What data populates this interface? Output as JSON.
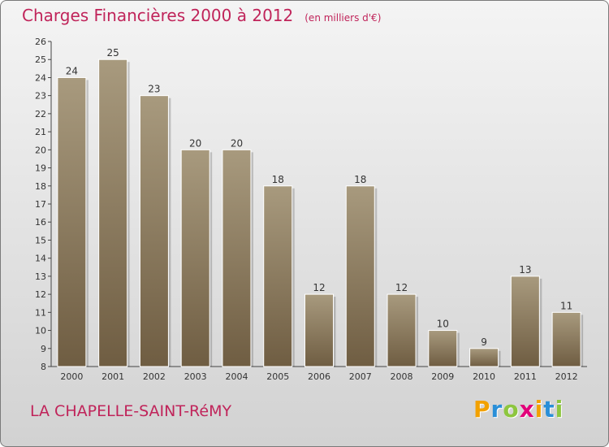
{
  "header": {
    "title": "Charges Financières 2000 à 2012",
    "unit": "(en milliers d'€)"
  },
  "footer": {
    "commune": "LA CHAPELLE-SAINT-RéMY",
    "brand": "Proxiti",
    "brand_letters": [
      "P",
      "r",
      "o",
      "x",
      "i",
      "t",
      "i"
    ],
    "brand_colors": [
      "#f2a100",
      "#2a8fd8",
      "#8dc63f",
      "#e2007a",
      "#f2a100",
      "#2a8fd8",
      "#8dc63f"
    ]
  },
  "colors": {
    "accent": "#c0245a",
    "bar_top": "#a89a7e",
    "bar_bottom": "#6f5d42"
  },
  "chart_data": {
    "type": "bar",
    "categories": [
      "2000",
      "2001",
      "2002",
      "2003",
      "2004",
      "2005",
      "2006",
      "2007",
      "2008",
      "2009",
      "2010",
      "2011",
      "2012"
    ],
    "values": [
      24,
      25,
      23,
      20,
      20,
      18,
      12,
      18,
      12,
      10,
      9,
      13,
      11
    ],
    "title": "Charges Financières 2000 à 2012",
    "subtitle": "(en milliers d'€)",
    "xlabel": "",
    "ylabel": "",
    "ylim": [
      8,
      26
    ],
    "yticks": [
      8,
      9,
      10,
      11,
      12,
      13,
      14,
      15,
      16,
      17,
      18,
      19,
      20,
      21,
      22,
      23,
      24,
      25,
      26
    ],
    "grid": false,
    "data_labels": true
  }
}
